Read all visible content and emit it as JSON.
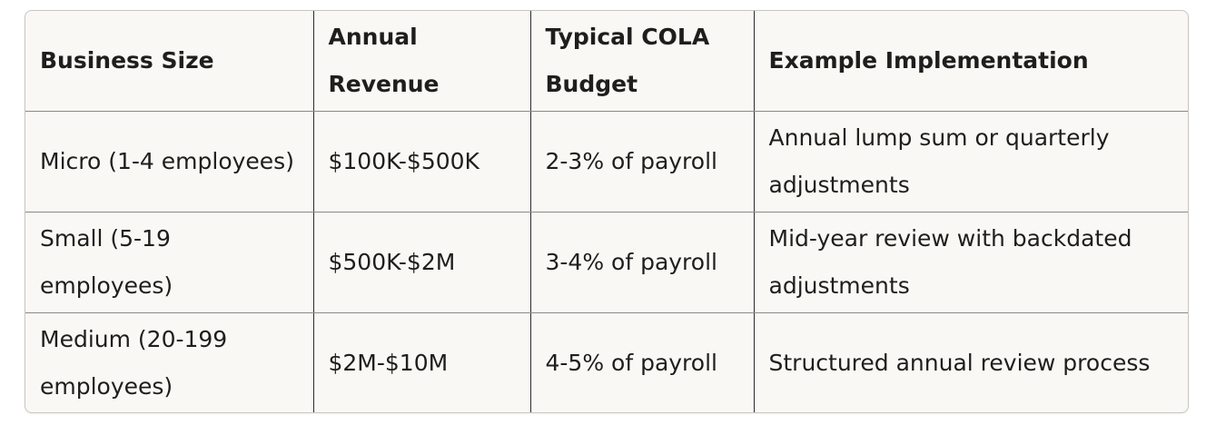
{
  "table": {
    "headers": [
      "Business Size",
      "Annual Revenue",
      "Typical COLA Budget",
      "Example Implementation"
    ],
    "rows": [
      [
        "Micro (1-4 employees)",
        "$100K-$500K",
        "2-3% of payroll",
        "Annual lump sum or quarterly adjustments"
      ],
      [
        "Small (5-19 employees)",
        "$500K-$2M",
        "3-4% of payroll",
        "Mid-year review with backdated adjustments"
      ],
      [
        "Medium (20-199 employees)",
        "$2M-$10M",
        "4-5% of payroll",
        "Structured annual review process"
      ]
    ]
  }
}
